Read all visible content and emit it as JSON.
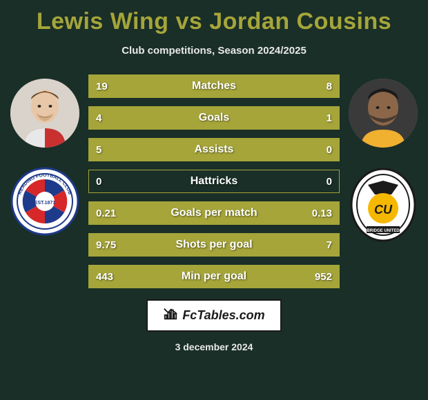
{
  "title": "Lewis Wing vs Jordan Cousins",
  "subtitle": "Club competitions, Season 2024/2025",
  "date": "3 december 2024",
  "footer_brand": "FcTables.com",
  "colors": {
    "accent": "#a5a53a",
    "background": "#1a2f27",
    "text": "#ffffff"
  },
  "players": {
    "left": {
      "name": "Lewis Wing",
      "club": "Reading"
    },
    "right": {
      "name": "Jordan Cousins",
      "club": "Cambridge United"
    }
  },
  "stats": [
    {
      "label": "Matches",
      "left_val": "19",
      "right_val": "8",
      "left_pct": 70,
      "right_pct": 30
    },
    {
      "label": "Goals",
      "left_val": "4",
      "right_val": "1",
      "left_pct": 80,
      "right_pct": 20
    },
    {
      "label": "Assists",
      "left_val": "5",
      "right_val": "0",
      "left_pct": 100,
      "right_pct": 0
    },
    {
      "label": "Hattricks",
      "left_val": "0",
      "right_val": "0",
      "left_pct": 0,
      "right_pct": 0
    },
    {
      "label": "Goals per match",
      "left_val": "0.21",
      "right_val": "0.13",
      "left_pct": 62,
      "right_pct": 38
    },
    {
      "label": "Shots per goal",
      "left_val": "9.75",
      "right_val": "7",
      "left_pct": 58,
      "right_pct": 42
    },
    {
      "label": "Min per goal",
      "left_val": "443",
      "right_val": "952",
      "left_pct": 32,
      "right_pct": 68
    }
  ]
}
